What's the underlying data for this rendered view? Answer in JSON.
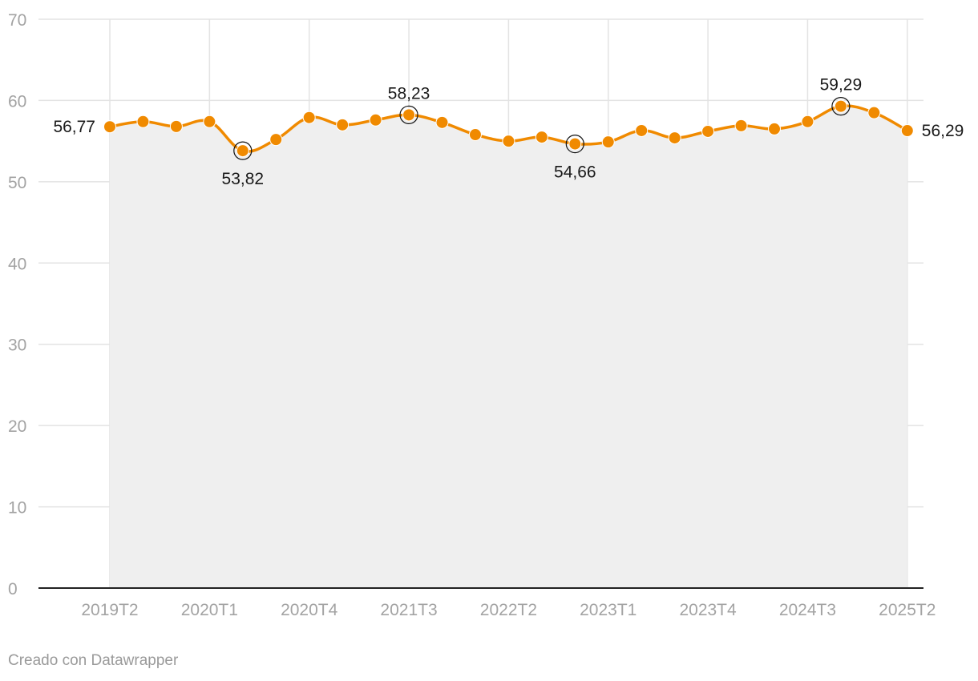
{
  "chart_data": {
    "type": "area",
    "title": "",
    "xlabel": "",
    "ylabel": "",
    "ylim": [
      0,
      70
    ],
    "y_ticks": [
      0,
      10,
      20,
      30,
      40,
      50,
      60,
      70
    ],
    "grid": true,
    "x_tick_labels": [
      "2019T2",
      "2020T1",
      "2020T4",
      "2021T3",
      "2022T2",
      "2023T1",
      "2023T4",
      "2024T3",
      "2025T2"
    ],
    "categories": [
      "2019T2",
      "2019T3",
      "2019T4",
      "2020T1",
      "2020T2",
      "2020T3",
      "2020T4",
      "2021T1",
      "2021T2",
      "2021T3",
      "2021T4",
      "2022T1",
      "2022T2",
      "2022T3",
      "2022T4",
      "2023T1",
      "2023T2",
      "2023T3",
      "2023T4",
      "2024T1",
      "2024T2",
      "2024T3",
      "2024T4",
      "2025T1",
      "2025T2"
    ],
    "values": [
      56.77,
      57.4,
      56.8,
      57.4,
      53.82,
      55.2,
      57.9,
      57.0,
      57.6,
      58.23,
      57.3,
      55.8,
      55.0,
      55.5,
      54.66,
      54.9,
      56.3,
      55.4,
      56.2,
      56.9,
      56.5,
      57.4,
      59.29,
      58.5,
      56.29
    ],
    "labels": [
      {
        "category": "2019T2",
        "text": "56,77",
        "position": "left",
        "highlight": false
      },
      {
        "category": "2020T2",
        "text": "53,82",
        "position": "below",
        "highlight": true
      },
      {
        "category": "2021T3",
        "text": "58,23",
        "position": "above",
        "highlight": true
      },
      {
        "category": "2022T4",
        "text": "54,66",
        "position": "below",
        "highlight": true
      },
      {
        "category": "2024T4",
        "text": "59,29",
        "position": "above",
        "highlight": true
      },
      {
        "category": "2025T2",
        "text": "56,29",
        "position": "right",
        "highlight": false
      }
    ],
    "colors": {
      "line": "#f08a00",
      "area": "#efefef",
      "grid": "#e3e3e3",
      "axis": "#222222"
    }
  },
  "footer": {
    "credit": "Creado con Datawrapper"
  }
}
